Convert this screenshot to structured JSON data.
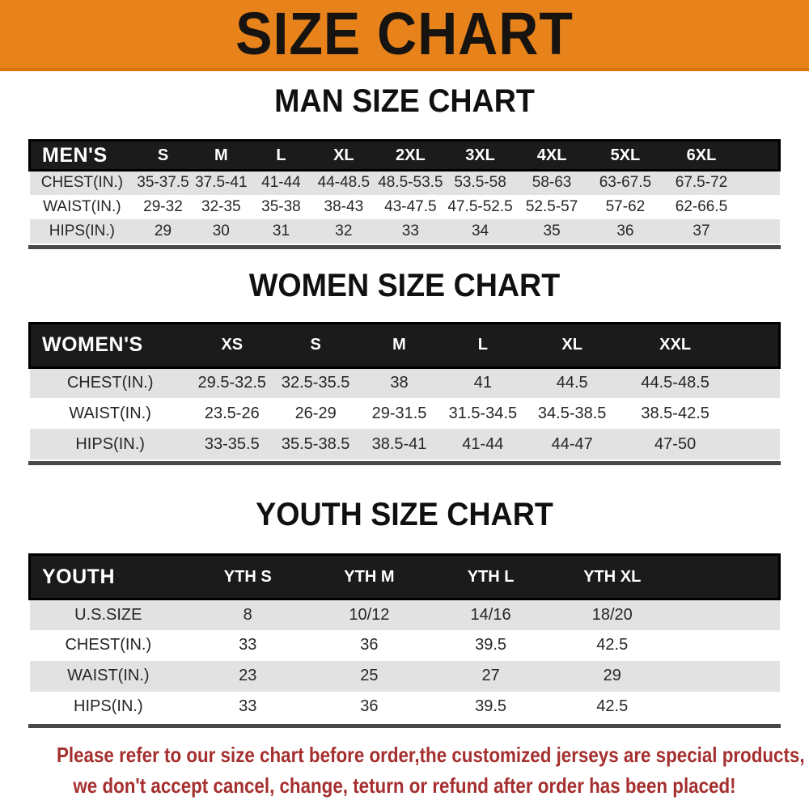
{
  "banner": {
    "title": "SIZE CHART",
    "bg_color": "#e8821b",
    "text_color": "#161310"
  },
  "colors": {
    "header_bar": "#1b1b1b",
    "row_alt": "#e2e2e2",
    "table_text": "#262626"
  },
  "sections": [
    {
      "id": "men",
      "heading": "MAN SIZE CHART",
      "table": {
        "header": {
          "label": "MEN'S",
          "columns": [
            "S",
            "M",
            "L",
            "XL",
            "2XL",
            "3XL",
            "4XL",
            "5XL",
            "6XL"
          ]
        },
        "rows": [
          {
            "label": "CHEST(IN.)",
            "values": [
              "35-37.5",
              "37.5-41",
              "41-44",
              "44-48.5",
              "48.5-53.5",
              "53.5-58",
              "58-63",
              "63-67.5",
              "67.5-72"
            ]
          },
          {
            "label": "WAIST(IN.)",
            "values": [
              "29-32",
              "32-35",
              "35-38",
              "38-43",
              "43-47.5",
              "47.5-52.5",
              "52.5-57",
              "57-62",
              "62-66.5"
            ]
          },
          {
            "label": "HIPS(IN.)",
            "values": [
              "29",
              "30",
              "31",
              "32",
              "33",
              "34",
              "35",
              "36",
              "37"
            ]
          }
        ]
      }
    },
    {
      "id": "women",
      "heading": "WOMEN SIZE CHART",
      "table": {
        "header": {
          "label": "WOMEN'S",
          "columns": [
            "XS",
            "S",
            "M",
            "L",
            "XL",
            "XXL"
          ]
        },
        "rows": [
          {
            "label": "CHEST(IN.)",
            "values": [
              "29.5-32.5",
              "32.5-35.5",
              "38",
              "41",
              "44.5",
              "44.5-48.5"
            ]
          },
          {
            "label": "WAIST(IN.)",
            "values": [
              "23.5-26",
              "26-29",
              "29-31.5",
              "31.5-34.5",
              "34.5-38.5",
              "38.5-42.5"
            ]
          },
          {
            "label": "HIPS(IN.)",
            "values": [
              "33-35.5",
              "35.5-38.5",
              "38.5-41",
              "41-44",
              "44-47",
              "47-50"
            ]
          }
        ]
      }
    },
    {
      "id": "youth",
      "heading": "YOUTH SIZE CHART",
      "table": {
        "header": {
          "label": "YOUTH",
          "columns": [
            "YTH S",
            "YTH M",
            "YTH L",
            "YTH XL"
          ]
        },
        "rows": [
          {
            "label": "U.S.SIZE",
            "values": [
              "8",
              "10/12",
              "14/16",
              "18/20"
            ]
          },
          {
            "label": "CHEST(IN.)",
            "values": [
              "33",
              "36",
              "39.5",
              "42.5"
            ]
          },
          {
            "label": "WAIST(IN.)",
            "values": [
              "23",
              "25",
              "27",
              "29"
            ]
          },
          {
            "label": "HIPS(IN.)",
            "values": [
              "33",
              "36",
              "39.5",
              "42.5"
            ]
          }
        ]
      }
    }
  ],
  "footer": {
    "line1": "Please refer to our size chart before order,the customized jerseys are special products,",
    "line2": "we don't accept cancel, change, teturn or refund after order has been placed!",
    "color": "#a52f2f"
  }
}
